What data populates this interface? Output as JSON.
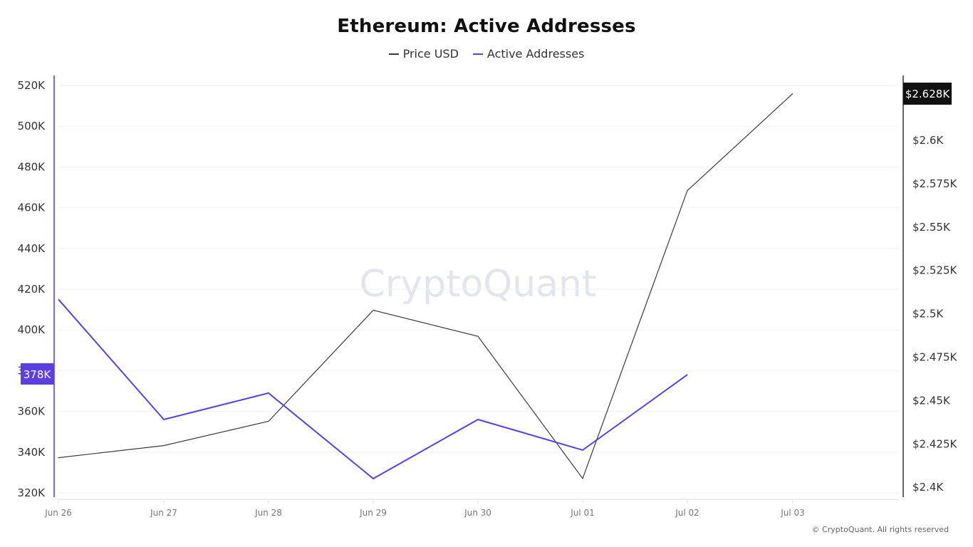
{
  "chart_data": {
    "type": "line",
    "title": "Ethereum: Active Addresses",
    "categories": [
      "Jun 26",
      "Jun 27",
      "Jun 28",
      "Jun 29",
      "Jun 30",
      "Jul 01",
      "Jul 02",
      "Jul 03"
    ],
    "series": [
      {
        "name": "Price USD",
        "axis": "right",
        "color": "#3a3a3a",
        "values": [
          2417,
          2424,
          2438,
          2502,
          2487,
          2405,
          2571,
          2627
        ]
      },
      {
        "name": "Active Addresses",
        "axis": "left",
        "color": "#5b3fe0",
        "values": [
          415000,
          356000,
          369000,
          327000,
          356000,
          341000,
          378000,
          null
        ]
      }
    ],
    "left_axis": {
      "label": "Active Addresses",
      "ylim": [
        320000,
        520000
      ],
      "ticks": [
        "520K",
        "500K",
        "480K",
        "460K",
        "440K",
        "420K",
        "400K",
        "380K",
        "360K",
        "340K",
        "320K"
      ]
    },
    "right_axis": {
      "label": "Price USD",
      "ylim": [
        2400,
        2628
      ],
      "ticks": [
        "$2.6K",
        "$2.575K",
        "$2.55K",
        "$2.525K",
        "$2.5K",
        "$2.475K",
        "$2.45K",
        "$2.425K",
        "$2.4K"
      ]
    },
    "xlabel": "",
    "grid": true,
    "legend_position": "top-center",
    "annotations": {
      "left_last_value": "378K",
      "right_last_value": "$2.628K"
    }
  },
  "header": {
    "title": "Ethereum: Active Addresses"
  },
  "legend": [
    {
      "label": "Price USD",
      "color": "#3a3a3a"
    },
    {
      "label": "Active Addresses",
      "color": "#5b3fe0"
    }
  ],
  "badges": {
    "left": "378K",
    "right": "$2.628K"
  },
  "watermark": "CryptoQuant",
  "footer": {
    "copyright": "© CryptoQuant. All rights reserved"
  }
}
